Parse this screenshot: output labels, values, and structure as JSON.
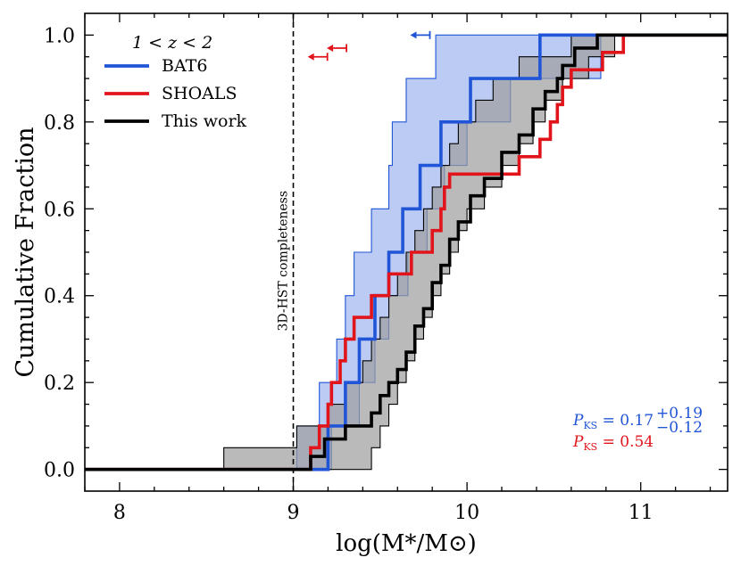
{
  "chart_data": {
    "type": "line",
    "subtype": "step-cdf",
    "xlabel": "log(M*/M⊙)",
    "ylabel": "Cumulative Fraction",
    "xlim": [
      7.8,
      11.5
    ],
    "ylim": [
      -0.05,
      1.05
    ],
    "xticks": [
      8,
      9,
      10,
      11
    ],
    "ytick_labels": [
      "0.0",
      "0.2",
      "0.4",
      "0.6",
      "0.8",
      "1.0"
    ],
    "legend": {
      "title": "1 < z < 2",
      "placement": "top-left",
      "entries": [
        "BAT6",
        "SHOALS",
        "This work"
      ]
    },
    "vertical_line": {
      "x": 9.0,
      "label": "3D-HST completeness"
    },
    "series": [
      {
        "name": "BAT6",
        "color": "#1f55d6",
        "band_fill": "#9fb5ee",
        "steps": [
          [
            7.8,
            0
          ],
          [
            9.2,
            0
          ],
          [
            9.2,
            0.1
          ],
          [
            9.3,
            0.1
          ],
          [
            9.3,
            0.2
          ],
          [
            9.38,
            0.2
          ],
          [
            9.38,
            0.3
          ],
          [
            9.47,
            0.3
          ],
          [
            9.47,
            0.4
          ],
          [
            9.55,
            0.4
          ],
          [
            9.55,
            0.5
          ],
          [
            9.63,
            0.5
          ],
          [
            9.63,
            0.6
          ],
          [
            9.73,
            0.6
          ],
          [
            9.73,
            0.7
          ],
          [
            9.85,
            0.7
          ],
          [
            9.85,
            0.8
          ],
          [
            10.02,
            0.8
          ],
          [
            10.02,
            0.9
          ],
          [
            10.42,
            0.9
          ],
          [
            10.42,
            1.0
          ],
          [
            11.5,
            1.0
          ]
        ],
        "band_lower": [
          [
            9.2,
            0
          ],
          [
            9.22,
            0
          ],
          [
            9.22,
            0.1
          ],
          [
            9.38,
            0.1
          ],
          [
            9.38,
            0.2
          ],
          [
            9.47,
            0.2
          ],
          [
            9.47,
            0.3
          ],
          [
            9.55,
            0.3
          ],
          [
            9.55,
            0.4
          ],
          [
            9.66,
            0.4
          ],
          [
            9.66,
            0.5
          ],
          [
            9.77,
            0.5
          ],
          [
            9.77,
            0.6
          ],
          [
            9.87,
            0.6
          ],
          [
            9.87,
            0.7
          ],
          [
            10.0,
            0.7
          ],
          [
            10.0,
            0.8
          ],
          [
            10.25,
            0.8
          ],
          [
            10.25,
            0.9
          ],
          [
            10.77,
            0.9
          ],
          [
            10.77,
            1.0
          ]
        ],
        "band_upper": [
          [
            9.02,
            0
          ],
          [
            9.02,
            0.1
          ],
          [
            9.15,
            0.1
          ],
          [
            9.15,
            0.2
          ],
          [
            9.25,
            0.2
          ],
          [
            9.25,
            0.3
          ],
          [
            9.3,
            0.3
          ],
          [
            9.3,
            0.4
          ],
          [
            9.35,
            0.4
          ],
          [
            9.35,
            0.5
          ],
          [
            9.45,
            0.5
          ],
          [
            9.45,
            0.6
          ],
          [
            9.55,
            0.6
          ],
          [
            9.55,
            0.7
          ],
          [
            9.57,
            0.7
          ],
          [
            9.57,
            0.8
          ],
          [
            9.65,
            0.8
          ],
          [
            9.65,
            0.9
          ],
          [
            9.82,
            0.9
          ],
          [
            9.82,
            1.0
          ],
          [
            10.42,
            1.0
          ]
        ],
        "upper_limits": [
          [
            9.74,
            1.0
          ]
        ]
      },
      {
        "name": "SHOALS",
        "color": "#e0141a",
        "steps": [
          [
            7.8,
            0
          ],
          [
            9.1,
            0
          ],
          [
            9.1,
            0.05
          ],
          [
            9.15,
            0.05
          ],
          [
            9.15,
            0.1
          ],
          [
            9.2,
            0.1
          ],
          [
            9.2,
            0.15
          ],
          [
            9.22,
            0.15
          ],
          [
            9.22,
            0.2
          ],
          [
            9.27,
            0.2
          ],
          [
            9.27,
            0.25
          ],
          [
            9.3,
            0.25
          ],
          [
            9.3,
            0.3
          ],
          [
            9.35,
            0.3
          ],
          [
            9.35,
            0.35
          ],
          [
            9.45,
            0.35
          ],
          [
            9.45,
            0.4
          ],
          [
            9.55,
            0.4
          ],
          [
            9.55,
            0.45
          ],
          [
            9.68,
            0.45
          ],
          [
            9.68,
            0.5
          ],
          [
            9.8,
            0.5
          ],
          [
            9.8,
            0.55
          ],
          [
            9.85,
            0.55
          ],
          [
            9.85,
            0.6
          ],
          [
            9.87,
            0.6
          ],
          [
            9.87,
            0.65
          ],
          [
            9.9,
            0.65
          ],
          [
            9.9,
            0.68
          ],
          [
            10.3,
            0.68
          ],
          [
            10.3,
            0.72
          ],
          [
            10.42,
            0.72
          ],
          [
            10.42,
            0.76
          ],
          [
            10.48,
            0.76
          ],
          [
            10.48,
            0.8
          ],
          [
            10.52,
            0.8
          ],
          [
            10.52,
            0.84
          ],
          [
            10.55,
            0.84
          ],
          [
            10.55,
            0.88
          ],
          [
            10.6,
            0.88
          ],
          [
            10.6,
            0.92
          ],
          [
            10.78,
            0.92
          ],
          [
            10.78,
            0.96
          ],
          [
            10.9,
            0.96
          ],
          [
            10.9,
            1.0
          ],
          [
            11.5,
            1.0
          ]
        ],
        "upper_limits": [
          [
            9.15,
            0.95
          ],
          [
            9.26,
            0.97
          ]
        ]
      },
      {
        "name": "This work",
        "color": "#000000",
        "band_fill": "#9c9c9c",
        "steps": [
          [
            7.8,
            0
          ],
          [
            9.1,
            0
          ],
          [
            9.1,
            0.03
          ],
          [
            9.18,
            0.03
          ],
          [
            9.18,
            0.07
          ],
          [
            9.3,
            0.07
          ],
          [
            9.3,
            0.1
          ],
          [
            9.45,
            0.1
          ],
          [
            9.45,
            0.13
          ],
          [
            9.5,
            0.13
          ],
          [
            9.5,
            0.17
          ],
          [
            9.55,
            0.17
          ],
          [
            9.55,
            0.2
          ],
          [
            9.6,
            0.2
          ],
          [
            9.6,
            0.23
          ],
          [
            9.65,
            0.23
          ],
          [
            9.65,
            0.27
          ],
          [
            9.7,
            0.27
          ],
          [
            9.7,
            0.33
          ],
          [
            9.75,
            0.33
          ],
          [
            9.75,
            0.37
          ],
          [
            9.8,
            0.37
          ],
          [
            9.8,
            0.43
          ],
          [
            9.85,
            0.43
          ],
          [
            9.85,
            0.47
          ],
          [
            9.9,
            0.47
          ],
          [
            9.9,
            0.53
          ],
          [
            9.95,
            0.53
          ],
          [
            9.95,
            0.57
          ],
          [
            10.02,
            0.57
          ],
          [
            10.02,
            0.63
          ],
          [
            10.1,
            0.63
          ],
          [
            10.1,
            0.67
          ],
          [
            10.2,
            0.67
          ],
          [
            10.2,
            0.73
          ],
          [
            10.3,
            0.73
          ],
          [
            10.3,
            0.77
          ],
          [
            10.38,
            0.77
          ],
          [
            10.38,
            0.83
          ],
          [
            10.45,
            0.83
          ],
          [
            10.45,
            0.87
          ],
          [
            10.52,
            0.87
          ],
          [
            10.52,
            0.9
          ],
          [
            10.55,
            0.9
          ],
          [
            10.55,
            0.93
          ],
          [
            10.62,
            0.93
          ],
          [
            10.62,
            0.97
          ],
          [
            10.75,
            0.97
          ],
          [
            10.75,
            1.0
          ],
          [
            11.5,
            1.0
          ]
        ],
        "band_lower": [
          [
            9.3,
            0
          ],
          [
            9.45,
            0
          ],
          [
            9.45,
            0.05
          ],
          [
            9.5,
            0.05
          ],
          [
            9.5,
            0.1
          ],
          [
            9.55,
            0.1
          ],
          [
            9.55,
            0.15
          ],
          [
            9.6,
            0.15
          ],
          [
            9.6,
            0.2
          ],
          [
            9.65,
            0.2
          ],
          [
            9.65,
            0.25
          ],
          [
            9.7,
            0.25
          ],
          [
            9.7,
            0.3
          ],
          [
            9.75,
            0.3
          ],
          [
            9.75,
            0.35
          ],
          [
            9.8,
            0.35
          ],
          [
            9.8,
            0.4
          ],
          [
            9.85,
            0.4
          ],
          [
            9.85,
            0.45
          ],
          [
            9.9,
            0.45
          ],
          [
            9.9,
            0.5
          ],
          [
            9.95,
            0.5
          ],
          [
            9.95,
            0.55
          ],
          [
            10.0,
            0.55
          ],
          [
            10.0,
            0.6
          ],
          [
            10.1,
            0.6
          ],
          [
            10.1,
            0.65
          ],
          [
            10.2,
            0.65
          ],
          [
            10.2,
            0.7
          ],
          [
            10.3,
            0.7
          ],
          [
            10.3,
            0.75
          ],
          [
            10.38,
            0.75
          ],
          [
            10.38,
            0.8
          ],
          [
            10.45,
            0.8
          ],
          [
            10.45,
            0.85
          ],
          [
            10.55,
            0.85
          ],
          [
            10.55,
            0.9
          ],
          [
            10.7,
            0.9
          ],
          [
            10.7,
            0.95
          ],
          [
            10.85,
            0.95
          ],
          [
            10.85,
            1.0
          ],
          [
            11.08,
            1.0
          ]
        ],
        "band_upper": [
          [
            8.6,
            0
          ],
          [
            8.6,
            0.05
          ],
          [
            9.02,
            0.05
          ],
          [
            9.02,
            0.1
          ],
          [
            9.2,
            0.1
          ],
          [
            9.2,
            0.15
          ],
          [
            9.3,
            0.15
          ],
          [
            9.3,
            0.2
          ],
          [
            9.4,
            0.2
          ],
          [
            9.4,
            0.25
          ],
          [
            9.45,
            0.25
          ],
          [
            9.45,
            0.3
          ],
          [
            9.5,
            0.3
          ],
          [
            9.5,
            0.35
          ],
          [
            9.55,
            0.35
          ],
          [
            9.55,
            0.4
          ],
          [
            9.6,
            0.4
          ],
          [
            9.6,
            0.45
          ],
          [
            9.65,
            0.45
          ],
          [
            9.65,
            0.5
          ],
          [
            9.7,
            0.5
          ],
          [
            9.7,
            0.55
          ],
          [
            9.75,
            0.55
          ],
          [
            9.75,
            0.6
          ],
          [
            9.8,
            0.6
          ],
          [
            9.8,
            0.65
          ],
          [
            9.85,
            0.65
          ],
          [
            9.85,
            0.7
          ],
          [
            9.9,
            0.7
          ],
          [
            9.9,
            0.75
          ],
          [
            9.95,
            0.75
          ],
          [
            9.95,
            0.8
          ],
          [
            10.05,
            0.8
          ],
          [
            10.05,
            0.85
          ],
          [
            10.15,
            0.85
          ],
          [
            10.15,
            0.9
          ],
          [
            10.3,
            0.9
          ],
          [
            10.3,
            0.95
          ],
          [
            10.6,
            0.95
          ],
          [
            10.6,
            1.0
          ],
          [
            11.08,
            1.0
          ]
        ]
      }
    ],
    "ks_annotations": [
      {
        "label_main": "P",
        "label_sub": "KS",
        "value": "= 0.17",
        "sup": "+0.19",
        "sub": "−0.12",
        "color": "#1f55d6"
      },
      {
        "label_main": "P",
        "label_sub": "KS",
        "value": "= 0.54",
        "sup": "",
        "sub": "",
        "color": "#e0141a"
      }
    ]
  }
}
